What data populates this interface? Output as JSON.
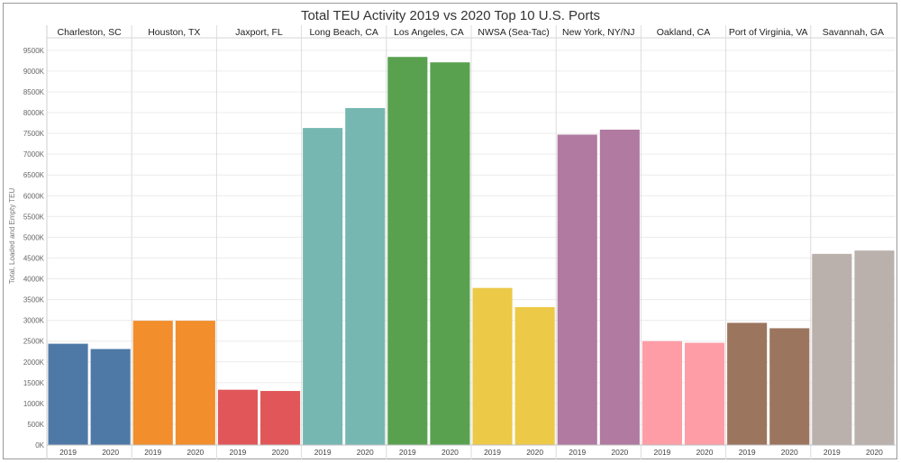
{
  "chart_data": {
    "type": "bar",
    "title": "Total TEU Activity 2019 vs 2020 Top 10 U.S. Ports",
    "ylabel": "Total, Loaded and Empty TEU",
    "xlabel": "",
    "ylim": [
      0,
      9800
    ],
    "yticks": [
      0,
      500,
      1000,
      1500,
      2000,
      2500,
      3000,
      3500,
      4000,
      4500,
      5000,
      5500,
      6000,
      6500,
      7000,
      7500,
      8000,
      8500,
      9000,
      9500
    ],
    "ytick_labels": [
      "0K",
      "500K",
      "1000K",
      "1500K",
      "2000K",
      "2500K",
      "3000K",
      "3500K",
      "4000K",
      "4500K",
      "5000K",
      "5500K",
      "6000K",
      "6500K",
      "7000K",
      "7500K",
      "8000K",
      "8500K",
      "9000K",
      "9500K"
    ],
    "grid": true,
    "years": [
      "2019",
      "2020"
    ],
    "groups": [
      {
        "name": "Charleston, SC",
        "color": "#4e79a7",
        "values": [
          2437,
          2310
        ]
      },
      {
        "name": "Houston, TX",
        "color": "#f28e2b",
        "values": [
          2990,
          2990
        ]
      },
      {
        "name": "Jaxport, FL",
        "color": "#e15759",
        "values": [
          1330,
          1300
        ]
      },
      {
        "name": "Long Beach, CA",
        "color": "#76b7b2",
        "values": [
          7630,
          8110
        ]
      },
      {
        "name": "Los Angeles, CA",
        "color": "#59a14f",
        "values": [
          9340,
          9210
        ]
      },
      {
        "name": "NWSA (Sea-Tac)",
        "color": "#edc948",
        "values": [
          3780,
          3320
        ]
      },
      {
        "name": "New York, NY/NJ",
        "color": "#b07aa1",
        "values": [
          7470,
          7590
        ]
      },
      {
        "name": "Oakland, CA",
        "color": "#ff9da7",
        "values": [
          2500,
          2460
        ]
      },
      {
        "name": "Port of Virginia, VA",
        "color": "#9c755f",
        "values": [
          2940,
          2810
        ]
      },
      {
        "name": "Savannah, GA",
        "color": "#bab0ac",
        "values": [
          4600,
          4680
        ]
      }
    ]
  }
}
